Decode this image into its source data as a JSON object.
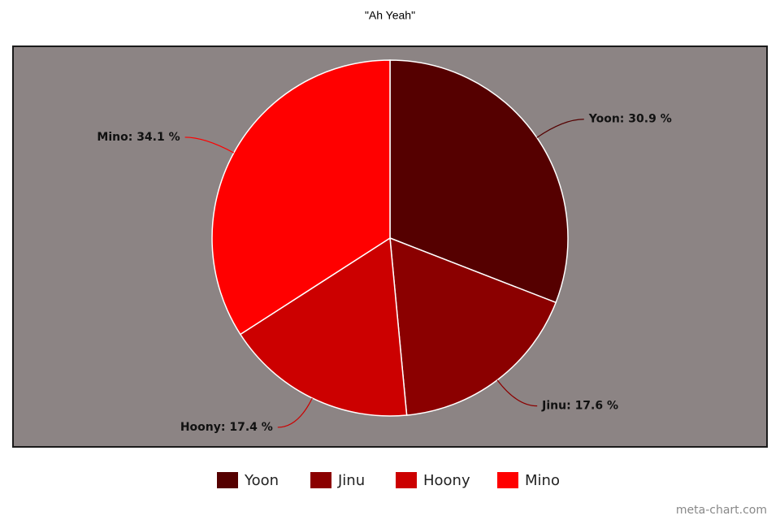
{
  "chart_data": {
    "type": "pie",
    "title": "\"Ah Yeah\"",
    "categories": [
      "Yoon",
      "Jinu",
      "Hoony",
      "Mino"
    ],
    "values": [
      30.9,
      17.6,
      17.4,
      34.1
    ],
    "value_labels": [
      "Yoon: 30.9 %",
      "Jinu: 17.6 %",
      "Hoony: 17.4 %",
      "Mino: 34.1 %"
    ],
    "colors": [
      "#550000",
      "#8b0000",
      "#cc0000",
      "#ff0000"
    ],
    "legend": "bottom",
    "watermark": "meta-chart.com"
  }
}
